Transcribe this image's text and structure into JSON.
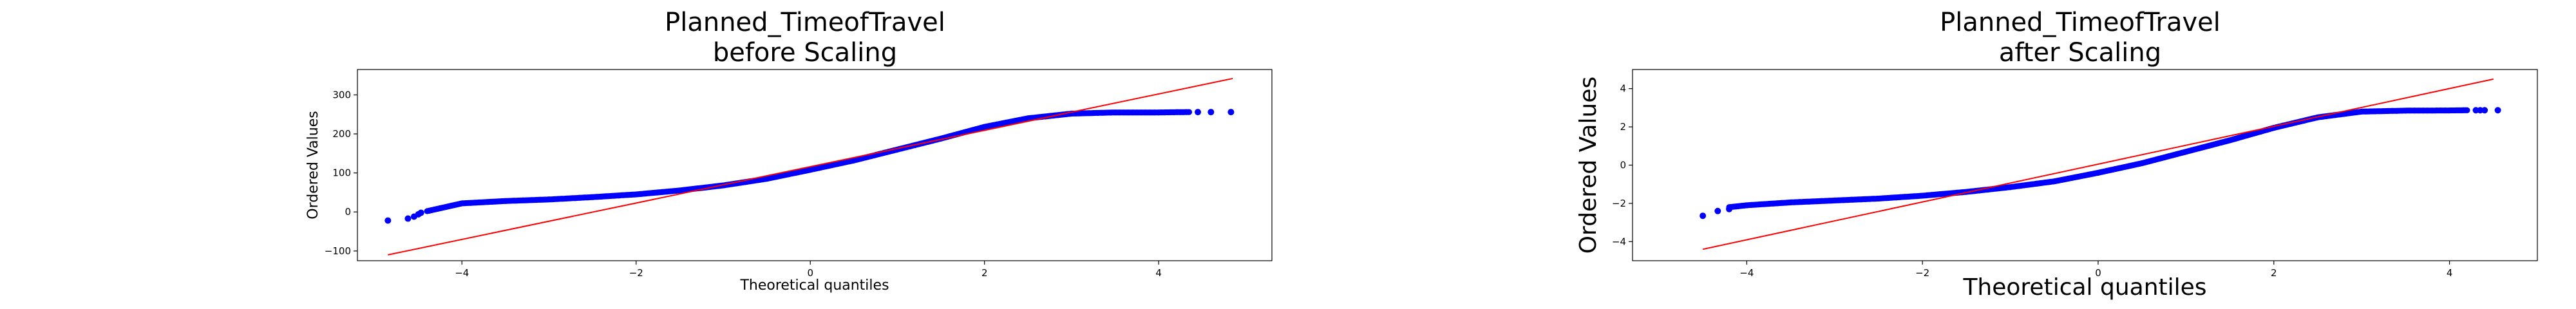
{
  "chart_data": [
    {
      "type": "scatter",
      "title_line1": "Planned_TimeofTravel",
      "title_line2": "before Scaling",
      "xlabel": "Theoretical quantiles",
      "ylabel": "Ordered Values",
      "xlim": [
        -5.2,
        5.3
      ],
      "ylim": [
        -125,
        365
      ],
      "xticks": [
        -4,
        -2,
        0,
        2,
        4
      ],
      "yticks": [
        -100,
        0,
        100,
        200,
        300
      ],
      "xtick_labels": [
        "−4",
        "−2",
        "0",
        "2",
        "4"
      ],
      "ytick_labels": [
        "−100",
        "0",
        "100",
        "200",
        "300"
      ],
      "points_color": "#0000ff",
      "line_color": "#ff0000",
      "fit_line": {
        "x": [
          -4.85,
          4.85
        ],
        "y": [
          -110,
          342
        ]
      },
      "curve": {
        "x": [
          -4.4,
          -4.2,
          -4.0,
          -3.5,
          -3.0,
          -2.5,
          -2.0,
          -1.5,
          -1.0,
          -0.5,
          0.0,
          0.5,
          1.0,
          1.5,
          2.0,
          2.5,
          3.0,
          3.5,
          4.0,
          4.35
        ],
        "y": [
          2,
          12,
          22,
          28,
          32,
          38,
          45,
          55,
          68,
          85,
          108,
          132,
          160,
          188,
          218,
          240,
          252,
          255,
          255,
          256
        ]
      },
      "outliers": {
        "x": [
          -4.85,
          -4.62,
          -4.55,
          -4.5,
          -4.47,
          4.45,
          4.6,
          4.83
        ],
        "y": [
          -22,
          -17,
          -12,
          -6,
          -2,
          256,
          256,
          256
        ]
      }
    },
    {
      "type": "scatter",
      "title_line1": "Planned_TimeofTravel",
      "title_line2": "after Scaling",
      "xlabel": "Theoretical quantiles",
      "ylabel": "Ordered Values",
      "xlim": [
        -5.3,
        5.0
      ],
      "ylim": [
        -5.0,
        5.0
      ],
      "xticks": [
        -4,
        -2,
        0,
        2,
        4
      ],
      "yticks": [
        -4,
        -2,
        0,
        2,
        4
      ],
      "xtick_labels": [
        "−4",
        "−2",
        "0",
        "2",
        "4"
      ],
      "ytick_labels": [
        "−4",
        "−2",
        "0",
        "2",
        "4"
      ],
      "points_color": "#0000ff",
      "line_color": "#ff0000",
      "fit_line": {
        "x": [
          -4.5,
          4.5
        ],
        "y": [
          -4.4,
          4.5
        ]
      },
      "curve": {
        "x": [
          -4.2,
          -4.0,
          -3.5,
          -3.0,
          -2.5,
          -2.0,
          -1.5,
          -1.0,
          -0.5,
          0.0,
          0.5,
          1.0,
          1.5,
          2.0,
          2.5,
          3.0,
          3.5,
          4.0,
          4.2
        ],
        "y": [
          -2.2,
          -2.1,
          -1.95,
          -1.85,
          -1.75,
          -1.6,
          -1.4,
          -1.15,
          -0.85,
          -0.4,
          0.1,
          0.7,
          1.3,
          1.95,
          2.5,
          2.8,
          2.85,
          2.86,
          2.87
        ]
      },
      "outliers": {
        "x": [
          -4.5,
          -4.33,
          -4.2,
          4.3,
          4.35,
          4.4,
          4.55
        ],
        "y": [
          -2.65,
          -2.4,
          -2.3,
          2.87,
          2.87,
          2.87,
          2.87
        ]
      }
    }
  ]
}
